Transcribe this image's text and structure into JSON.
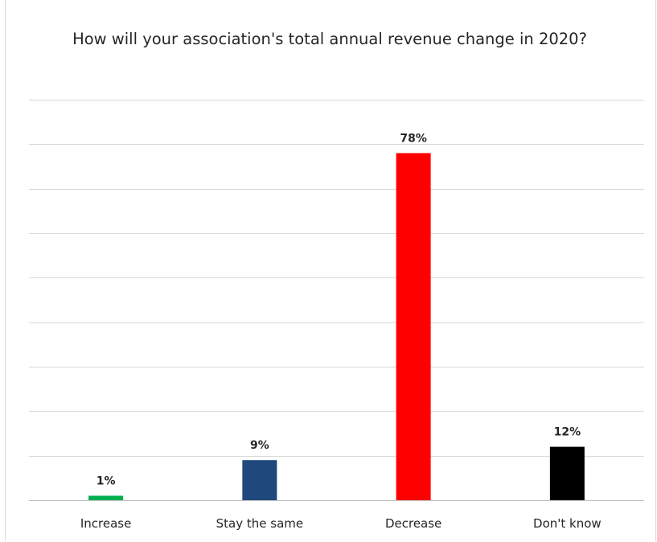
{
  "chart_data": {
    "type": "bar",
    "title": "How will your association's total annual revenue change in 2020?",
    "categories": [
      "Increase",
      "Stay the same",
      "Decrease",
      "Don't know"
    ],
    "values": [
      1,
      9,
      78,
      12
    ],
    "value_labels": [
      "1%",
      "9%",
      "78%",
      "12%"
    ],
    "colors": [
      "#00b050",
      "#1f497d",
      "#ff0000",
      "#000000"
    ],
    "ylim": [
      0,
      90
    ],
    "grid": true,
    "legend": "none"
  }
}
